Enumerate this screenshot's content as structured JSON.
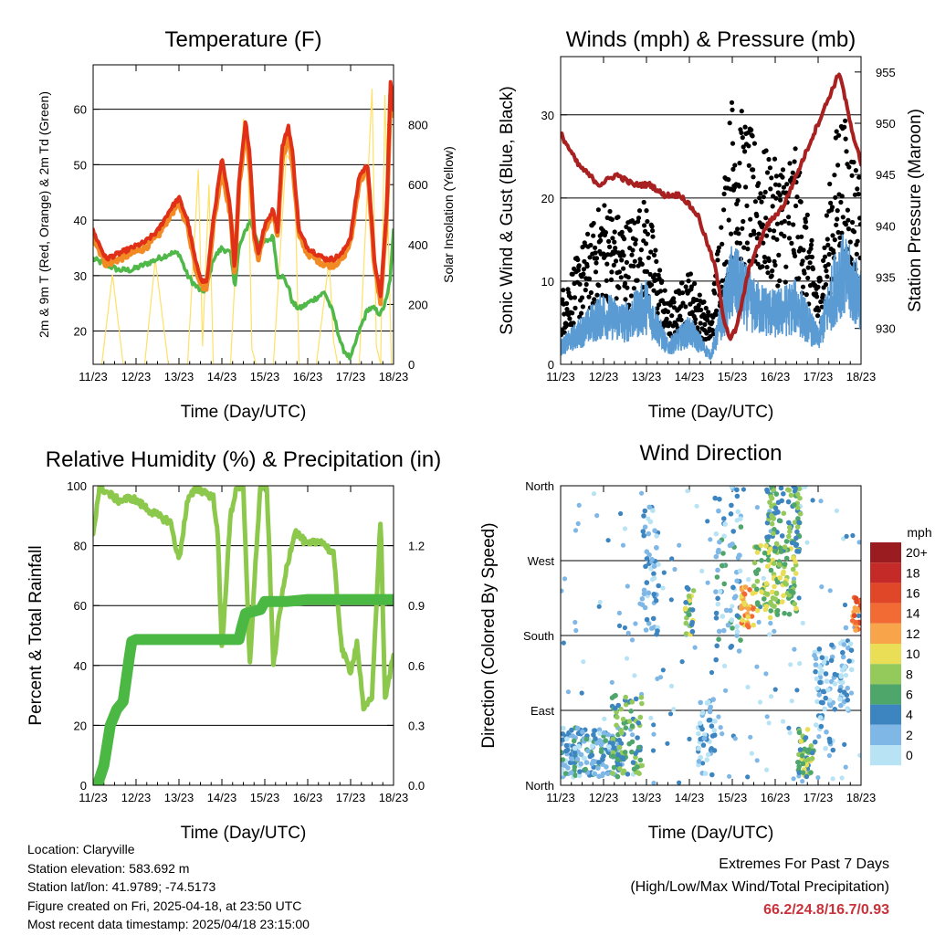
{
  "colors": {
    "temp2m": "#e03018",
    "temp9m": "#f28a24",
    "dewpoint": "#4fb848",
    "insolation": "#ffe066",
    "sonic": "#5a9bd4",
    "gust": "#000000",
    "pressure": "#a82020",
    "rh": "#8cc84b",
    "precip": "#4bb843",
    "extremes": "#c8323a"
  },
  "x_ticks": [
    "11/23",
    "12/23",
    "13/23",
    "14/23",
    "15/23",
    "16/23",
    "17/23",
    "18/23"
  ],
  "x_axis_label": "Time (Day/UTC)",
  "chart_data": [
    {
      "id": "temperature",
      "type": "line",
      "title": "Temperature (F)",
      "xlabel": "Time (Day/UTC)",
      "ylabel": "2m & 9m T (Red, Orange) & 2m Td (Green)",
      "y2label": "Solar Insolation (Yellow)",
      "xlim": [
        0,
        7
      ],
      "ylim": [
        14,
        68
      ],
      "y2lim": [
        0,
        1000
      ],
      "yticks": [
        20,
        30,
        40,
        50,
        60
      ],
      "y2ticks": [
        0,
        200,
        400,
        600,
        800
      ],
      "series": [
        {
          "name": "2m T",
          "axis": "left",
          "color": "#e03018",
          "x": [
            0,
            0.3,
            0.6,
            0.9,
            1.2,
            1.5,
            1.8,
            2.0,
            2.2,
            2.4,
            2.55,
            2.65,
            2.8,
            3.0,
            3.2,
            3.3,
            3.4,
            3.55,
            3.65,
            3.75,
            3.85,
            4.0,
            4.2,
            4.3,
            4.4,
            4.55,
            4.65,
            4.8,
            5.0,
            5.2,
            5.4,
            5.6,
            5.8,
            6.0,
            6.2,
            6.4,
            6.55,
            6.7,
            6.85,
            6.93,
            7.0
          ],
          "values": [
            38,
            33,
            34,
            35,
            36,
            38,
            42,
            44,
            40,
            32,
            29,
            29,
            40,
            51,
            42,
            31,
            47,
            58,
            52,
            38,
            34,
            39,
            42,
            38,
            53,
            57,
            52,
            38,
            35,
            34,
            33,
            33,
            34,
            37,
            48,
            50,
            33,
            26,
            43,
            65,
            60
          ]
        },
        {
          "name": "9m T",
          "axis": "left",
          "color": "#f28a24",
          "x": [
            0,
            0.3,
            0.6,
            0.9,
            1.2,
            1.5,
            1.8,
            2.0,
            2.2,
            2.4,
            2.55,
            2.65,
            2.8,
            3.0,
            3.2,
            3.3,
            3.4,
            3.55,
            3.65,
            3.75,
            3.85,
            4.0,
            4.2,
            4.3,
            4.4,
            4.55,
            4.65,
            4.8,
            5.0,
            5.2,
            5.4,
            5.6,
            5.8,
            6.0,
            6.2,
            6.4,
            6.55,
            6.7,
            6.85,
            6.93,
            7.0
          ],
          "values": [
            37,
            32,
            33,
            34,
            35,
            37,
            41,
            43,
            39,
            31,
            28,
            28,
            39,
            49,
            41,
            30,
            46,
            56,
            50,
            37,
            33,
            38,
            41,
            37,
            51,
            55,
            50,
            37,
            34,
            33,
            32,
            32,
            33,
            36,
            47,
            49,
            32,
            25,
            42,
            63,
            59
          ]
        },
        {
          "name": "2m Td",
          "axis": "left",
          "color": "#4fb848",
          "x": [
            0,
            0.3,
            0.6,
            0.9,
            1.2,
            1.5,
            1.8,
            2.0,
            2.2,
            2.4,
            2.55,
            2.65,
            2.8,
            3.0,
            3.2,
            3.3,
            3.4,
            3.55,
            3.65,
            3.75,
            3.85,
            4.0,
            4.2,
            4.3,
            4.4,
            4.55,
            4.65,
            4.8,
            5.0,
            5.2,
            5.4,
            5.6,
            5.8,
            6.0,
            6.2,
            6.4,
            6.55,
            6.7,
            6.85,
            6.93,
            7.0
          ],
          "values": [
            33,
            32,
            31,
            31,
            32,
            33,
            34,
            34,
            30,
            28,
            27,
            28,
            33,
            35,
            34,
            28,
            35,
            38,
            40,
            38,
            36,
            36,
            37,
            30,
            30,
            28,
            25,
            24,
            25,
            26,
            27,
            23,
            17,
            15,
            20,
            24,
            24,
            23,
            26,
            30,
            38
          ]
        },
        {
          "name": "Solar Insolation",
          "axis": "right",
          "color": "#ffe066",
          "x": [
            0.2,
            0.45,
            0.7,
            1.2,
            1.45,
            1.7,
            1.75,
            2.2,
            2.45,
            2.55,
            2.7,
            2.8,
            3.2,
            3.5,
            3.6,
            3.7,
            3.8,
            4.2,
            4.5,
            4.6,
            4.7,
            4.8,
            5.2,
            5.5,
            5.6,
            5.7,
            5.8,
            6.2,
            6.5,
            6.6,
            6.7,
            6.8,
            6.95
          ],
          "values": [
            0,
            300,
            0,
            0,
            350,
            60,
            0,
            0,
            650,
            60,
            600,
            0,
            0,
            820,
            750,
            50,
            0,
            0,
            700,
            680,
            600,
            0,
            0,
            350,
            80,
            0,
            0,
            0,
            920,
            60,
            0,
            900,
            0
          ]
        }
      ]
    },
    {
      "id": "winds",
      "type": "scatter",
      "title": "Winds (mph) & Pressure (mb)",
      "xlabel": "Time (Day/UTC)",
      "ylabel": "Sonic Wind & Gust (Blue, Black)",
      "y2label": "Station Pressure (Maroon)",
      "xlim": [
        0,
        7
      ],
      "ylim": [
        0,
        37
      ],
      "y2lim": [
        926.5,
        956.5
      ],
      "yticks": [
        0,
        10,
        20,
        30
      ],
      "y2ticks": [
        930,
        935,
        940,
        945,
        950,
        955
      ],
      "series": [
        {
          "name": "Sonic Wind",
          "color": "#5a9bd4",
          "x": [
            0,
            0.5,
            1.0,
            1.5,
            2.0,
            2.5,
            3.0,
            3.5,
            4.0,
            4.5,
            5.0,
            5.5,
            6.0,
            6.5,
            7.0
          ],
          "values": [
            2,
            4,
            6,
            5,
            7,
            2,
            4,
            1,
            10,
            7,
            6,
            7,
            3,
            11,
            8
          ]
        },
        {
          "name": "Gust",
          "color": "#000000",
          "x": [
            0,
            0.5,
            1.0,
            1.5,
            2.0,
            2.5,
            3.0,
            3.5,
            4.0,
            4.5,
            5.0,
            5.5,
            6.0,
            6.5,
            7.0
          ],
          "values": [
            6,
            10,
            14,
            12,
            14,
            5,
            8,
            4,
            23,
            19,
            17,
            18,
            7,
            22,
            16
          ]
        },
        {
          "name": "Station Pressure",
          "color": "#a82020",
          "x": [
            0,
            0.4,
            0.9,
            1.3,
            1.7,
            2.1,
            2.4,
            2.8,
            3.2,
            3.6,
            3.8,
            3.95,
            4.1,
            4.4,
            4.8,
            5.2,
            5.6,
            6.0,
            6.3,
            6.5,
            6.7,
            6.85,
            6.95,
            7.0
          ],
          "values": [
            949,
            946,
            944,
            945,
            944,
            944,
            943,
            943,
            941,
            936,
            931,
            929,
            930,
            936,
            940,
            942,
            946,
            950,
            953,
            955,
            951,
            948,
            947,
            946
          ]
        }
      ]
    },
    {
      "id": "humidity",
      "type": "line",
      "title": "Relative Humidity (%) & Precipitation (in)",
      "xlabel": "Time (Day/UTC)",
      "ylabel": "Percent & Total Rainfall",
      "xlim": [
        0,
        7
      ],
      "ylim": [
        0,
        100
      ],
      "y2lim": [
        0,
        1.5
      ],
      "yticks": [
        0,
        20,
        40,
        60,
        80,
        100
      ],
      "y2ticks": [
        0.0,
        0.3,
        0.6,
        0.9,
        1.2
      ],
      "y2ticklabels": [
        "0.0",
        "0.3",
        "0.6",
        "0.9",
        "1.2"
      ],
      "series": [
        {
          "name": "Relative Humidity",
          "color": "#8cc84b",
          "x": [
            0,
            0.15,
            0.3,
            0.6,
            0.9,
            1.2,
            1.5,
            1.8,
            2.0,
            2.2,
            2.4,
            2.6,
            2.8,
            2.9,
            3.0,
            3.2,
            3.35,
            3.5,
            3.65,
            3.8,
            3.9,
            4.05,
            4.2,
            4.35,
            4.5,
            4.7,
            5.0,
            5.3,
            5.6,
            5.8,
            6.0,
            6.15,
            6.3,
            6.5,
            6.7,
            6.8,
            7.0
          ],
          "values": [
            84,
            100,
            98,
            95,
            96,
            93,
            90,
            88,
            75,
            95,
            99,
            98,
            96,
            85,
            45,
            90,
            100,
            99,
            40,
            78,
            100,
            99,
            40,
            58,
            72,
            85,
            80,
            82,
            77,
            45,
            38,
            48,
            25,
            30,
            90,
            28,
            44
          ]
        },
        {
          "name": "Total Precipitation",
          "axis": "right",
          "color": "#4bb843",
          "x": [
            0,
            0.1,
            0.25,
            0.4,
            0.55,
            0.7,
            0.85,
            0.9,
            1.0,
            1.2,
            2.0,
            3.0,
            3.4,
            3.45,
            3.55,
            3.9,
            4.0,
            4.5,
            5.0,
            6.0,
            7.0
          ],
          "values": [
            0,
            0,
            0.1,
            0.3,
            0.38,
            0.42,
            0.65,
            0.72,
            0.73,
            0.73,
            0.73,
            0.73,
            0.73,
            0.78,
            0.86,
            0.88,
            0.92,
            0.92,
            0.93,
            0.93,
            0.93
          ]
        }
      ]
    },
    {
      "id": "wind_direction",
      "type": "scatter",
      "title": "Wind Direction",
      "xlabel": "Time (Day/UTC)",
      "ylabel": "Direction (Colored By Speed)",
      "xlim": [
        0,
        7
      ],
      "ylim": [
        0,
        360
      ],
      "yticks": [
        0,
        90,
        180,
        270,
        360
      ],
      "yticklabels": [
        "North",
        "East",
        "South",
        "West",
        "North"
      ],
      "legend_title": "mph",
      "legend_labels": [
        "20+",
        "18",
        "16",
        "14",
        "12",
        "10",
        "8",
        "6",
        "4",
        "2",
        "0"
      ],
      "legend_colors": [
        "#9b1c20",
        "#c42a28",
        "#e04628",
        "#f26b35",
        "#f7a44a",
        "#eade57",
        "#94c95b",
        "#4ea66b",
        "#3d85c0",
        "#7fb7e6",
        "#b7e3f5"
      ],
      "groups": [
        {
          "x0": 0.0,
          "x1": 1.4,
          "d0": 10,
          "d1": 70,
          "speed": 3
        },
        {
          "x0": 1.2,
          "x1": 1.9,
          "d0": 10,
          "d1": 110,
          "speed": 6
        },
        {
          "x0": 1.9,
          "x1": 2.3,
          "d0": 180,
          "d1": 340,
          "speed": 2
        },
        {
          "x0": 2.9,
          "x1": 3.1,
          "d0": 180,
          "d1": 240,
          "speed": 7
        },
        {
          "x0": 3.2,
          "x1": 3.6,
          "d0": 10,
          "d1": 110,
          "speed": 2
        },
        {
          "x0": 3.6,
          "x1": 4.2,
          "d0": 150,
          "d1": 360,
          "speed": 3
        },
        {
          "x0": 4.2,
          "x1": 4.5,
          "d0": 190,
          "d1": 240,
          "speed": 12
        },
        {
          "x0": 4.5,
          "x1": 5.5,
          "d0": 200,
          "d1": 290,
          "speed": 8
        },
        {
          "x0": 4.8,
          "x1": 5.6,
          "d0": 280,
          "d1": 360,
          "speed": 6
        },
        {
          "x0": 5.5,
          "x1": 5.9,
          "d0": 10,
          "d1": 70,
          "speed": 7
        },
        {
          "x0": 5.9,
          "x1": 6.4,
          "d0": 40,
          "d1": 170,
          "speed": 2
        },
        {
          "x0": 6.5,
          "x1": 6.8,
          "d0": 90,
          "d1": 200,
          "speed": 2
        },
        {
          "x0": 6.8,
          "x1": 7.0,
          "d0": 185,
          "d1": 230,
          "speed": 14
        }
      ]
    }
  ],
  "info": {
    "location": "Location: Claryville",
    "elevation": "Station elevation: 583.692 m",
    "latlon": "Station lat/lon: 41.9789; -74.5173",
    "created": "Figure created on Fri, 2025-04-18, at 23:50 UTC",
    "timestamp": "Most recent data timestamp: 2025/04/18 23:15:00"
  },
  "extremes": {
    "title": "Extremes For Past 7 Days",
    "subtitle": "(High/Low/Max Wind/Total Precipitation)",
    "values": "66.2/24.8/16.7/0.93"
  }
}
